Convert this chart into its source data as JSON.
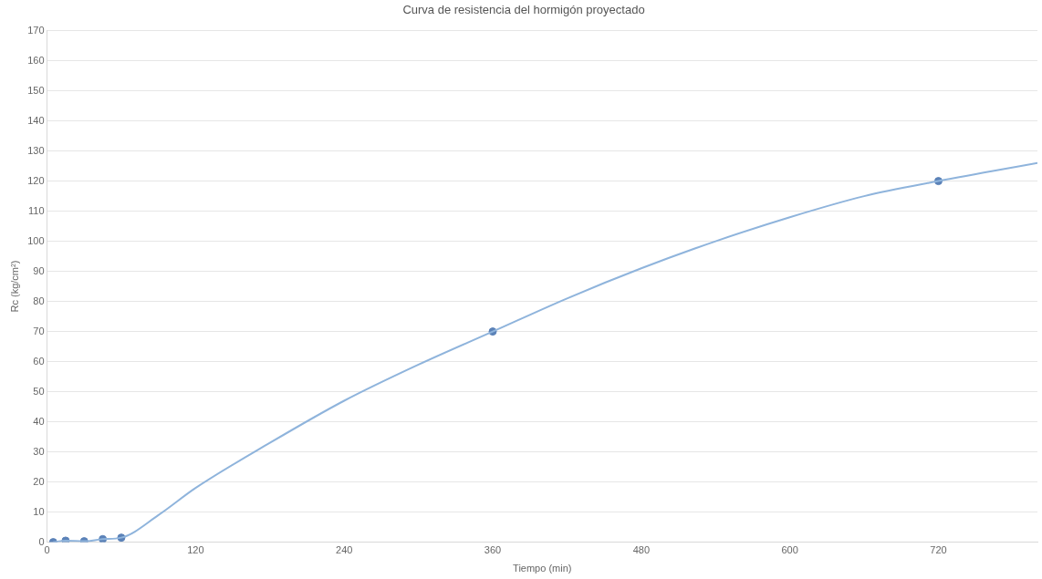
{
  "chart_data": {
    "type": "line",
    "title": "Curva de resistencia del hormigón proyectado",
    "xlabel": "Tiempo (min)",
    "ylabel": "Rc (kg/cm²)",
    "xlim": [
      0,
      800
    ],
    "xticks": [
      0,
      120,
      240,
      360,
      480,
      600,
      720
    ],
    "ylim": [
      0,
      170
    ],
    "yticks": [
      0,
      10,
      20,
      30,
      40,
      50,
      60,
      70,
      80,
      90,
      100,
      110,
      120,
      130,
      140,
      150,
      160,
      170
    ],
    "grid": "y",
    "legend": false,
    "series": [
      {
        "color": "#8fb4dc",
        "marker": "none",
        "line_style": "solid",
        "x": [
          5,
          15,
          30,
          45,
          60,
          90,
          120,
          180,
          240,
          300,
          360,
          420,
          480,
          540,
          600,
          660,
          720,
          800
        ],
        "values": [
          0,
          0.5,
          0.3,
          1,
          1.5,
          9,
          18,
          33,
          47,
          59,
          70,
          81,
          91,
          100,
          108,
          115,
          120,
          126
        ]
      },
      {
        "type": "scatter",
        "color": "#5b82b8",
        "marker": "circle",
        "x": [
          5,
          15,
          30,
          45,
          60,
          360,
          720
        ],
        "values": [
          0,
          0.5,
          0.3,
          1,
          1.5,
          70,
          120
        ]
      }
    ]
  }
}
